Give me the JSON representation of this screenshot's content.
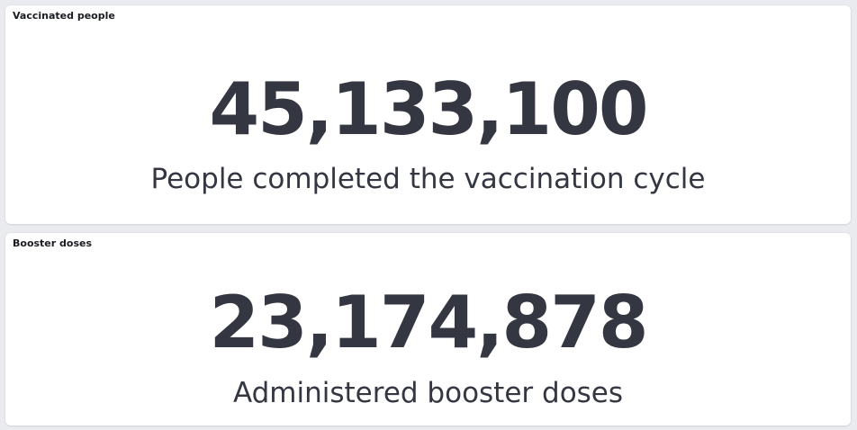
{
  "panels": [
    {
      "title": "Vaccinated people",
      "value": "45,133,100",
      "label": "People completed the vaccination cycle"
    },
    {
      "title": "Booster doses",
      "value": "23,174,878",
      "label": "Administered booster doses"
    }
  ],
  "colors": {
    "background": "#e9ebef",
    "panel": "#ffffff",
    "metric_text": "#343741",
    "title_text": "#1a1c21"
  }
}
